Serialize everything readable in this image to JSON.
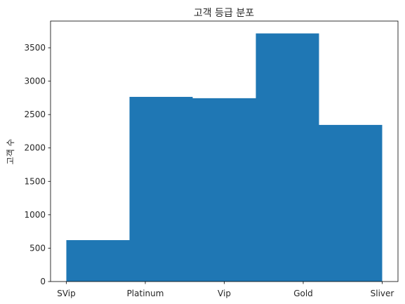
{
  "chart_data": {
    "type": "bar",
    "title": "고객 등급 분포",
    "xlabel": "",
    "ylabel": "고객 수",
    "categories": [
      "SVip",
      "Platinum",
      "Vip",
      "Gold",
      "Sliver"
    ],
    "x_ticks": [
      0,
      1,
      2,
      3,
      4
    ],
    "bins": [
      {
        "start": 0.0,
        "end": 0.8,
        "value": 620
      },
      {
        "start": 0.8,
        "end": 1.6,
        "value": 2765
      },
      {
        "start": 1.6,
        "end": 2.4,
        "value": 2745
      },
      {
        "start": 2.4,
        "end": 3.2,
        "value": 3715
      },
      {
        "start": 3.2,
        "end": 4.0,
        "value": 2345
      }
    ],
    "xlim": [
      -0.2,
      4.2
    ],
    "ylim": [
      0,
      3900
    ],
    "y_ticks": [
      0,
      500,
      1000,
      1500,
      2000,
      2500,
      3000,
      3500
    ],
    "bar_color": "#1f77b4",
    "grid": false
  }
}
